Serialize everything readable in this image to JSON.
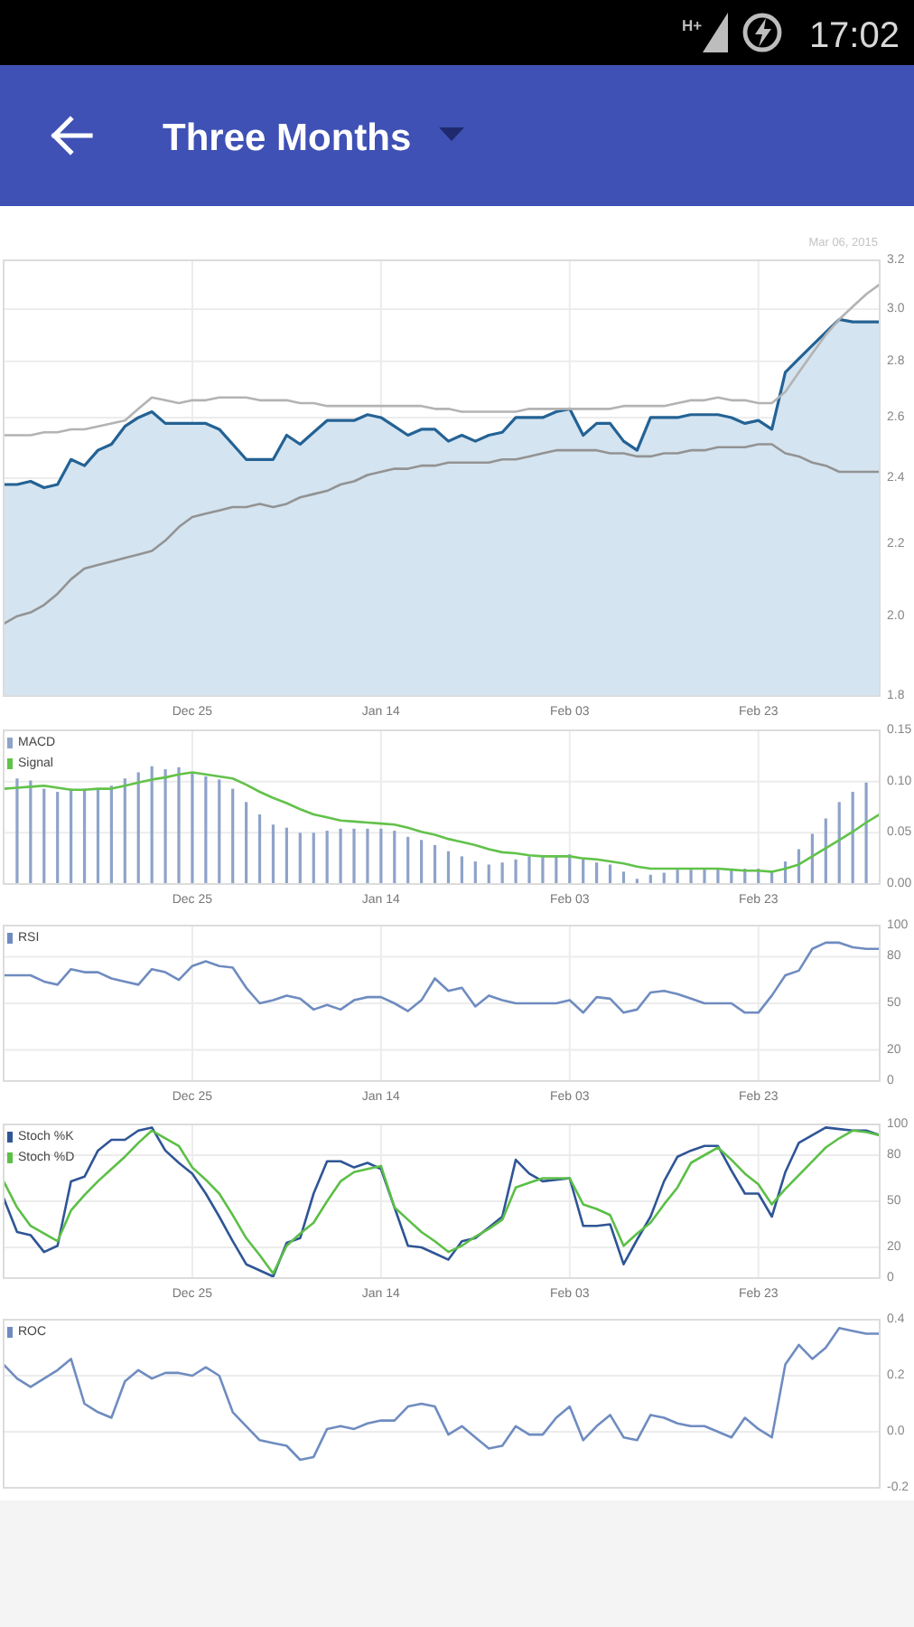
{
  "chart_data": [
    {
      "type": "line",
      "title": "Three Months",
      "annotations": [
        "H+",
        "17:02",
        "Mar 06, 2015"
      ],
      "categories": [
        null,
        null,
        null,
        null,
        null,
        null,
        null,
        null,
        null,
        null,
        null,
        null,
        null,
        null,
        "Dec 25",
        null,
        null,
        null,
        null,
        null,
        null,
        null,
        null,
        null,
        null,
        null,
        null,
        null,
        "Jan 14",
        null,
        null,
        null,
        null,
        null,
        null,
        null,
        null,
        null,
        null,
        null,
        null,
        null,
        "Feb 03",
        null,
        null,
        null,
        null,
        null,
        null,
        null,
        null,
        null,
        null,
        null,
        null,
        null,
        "Feb 23",
        null,
        null,
        null,
        null,
        null,
        null,
        null,
        null,
        null
      ],
      "ylim": [
        1.8,
        3.2
      ],
      "log": true,
      "yticks": [
        1.8,
        {
          "value": 2,
          "label": "2.0"
        },
        2.2,
        2.4,
        2.6,
        2.8,
        {
          "value": 3,
          "label": "3.0"
        },
        3.2
      ],
      "grid": true,
      "series": [
        {
          "type": "area",
          "color": "#d4e4f1",
          "values": [
            2.38,
            2.38,
            2.39,
            2.37,
            2.38,
            2.46,
            2.44,
            2.49,
            2.51,
            2.57,
            2.6,
            2.62,
            2.58,
            2.58,
            2.58,
            2.58,
            2.56,
            2.51,
            2.46,
            2.46,
            2.46,
            2.54,
            2.51,
            2.55,
            2.59,
            2.59,
            2.59,
            2.61,
            2.6,
            2.57,
            2.54,
            2.56,
            2.56,
            2.52,
            2.54,
            2.52,
            2.54,
            2.55,
            2.6,
            2.6,
            2.6,
            2.62,
            2.63,
            2.54,
            2.58,
            2.58,
            2.52,
            2.49,
            2.6,
            2.6,
            2.6,
            2.61,
            2.61,
            2.61,
            2.6,
            2.58,
            2.59,
            2.56,
            2.76,
            2.81,
            2.86,
            2.91,
            2.96,
            2.95,
            2.95,
            2.95
          ]
        },
        {
          "color": "#b3b3b3",
          "values": [
            2.54,
            2.54,
            2.54,
            2.55,
            2.55,
            2.56,
            2.56,
            2.57,
            2.58,
            2.59,
            2.63,
            2.67,
            2.66,
            2.65,
            2.66,
            2.66,
            2.67,
            2.67,
            2.67,
            2.66,
            2.66,
            2.66,
            2.65,
            2.65,
            2.64,
            2.64,
            2.64,
            2.64,
            2.64,
            2.64,
            2.64,
            2.64,
            2.63,
            2.63,
            2.62,
            2.62,
            2.62,
            2.62,
            2.62,
            2.63,
            2.63,
            2.63,
            2.63,
            2.63,
            2.63,
            2.63,
            2.64,
            2.64,
            2.64,
            2.64,
            2.65,
            2.66,
            2.66,
            2.67,
            2.66,
            2.66,
            2.65,
            2.65,
            2.69,
            2.76,
            2.83,
            2.9,
            2.96,
            3.01,
            3.06,
            3.1
          ]
        },
        {
          "color": "#939393",
          "values": [
            1.98,
            2.0,
            2.01,
            2.03,
            2.06,
            2.1,
            2.13,
            2.14,
            2.15,
            2.16,
            2.17,
            2.18,
            2.21,
            2.25,
            2.28,
            2.29,
            2.3,
            2.31,
            2.31,
            2.32,
            2.31,
            2.32,
            2.34,
            2.35,
            2.36,
            2.38,
            2.39,
            2.41,
            2.42,
            2.43,
            2.43,
            2.44,
            2.44,
            2.45,
            2.45,
            2.45,
            2.45,
            2.46,
            2.46,
            2.47,
            2.48,
            2.49,
            2.49,
            2.49,
            2.49,
            2.48,
            2.48,
            2.47,
            2.47,
            2.48,
            2.48,
            2.49,
            2.49,
            2.5,
            2.5,
            2.5,
            2.51,
            2.51,
            2.48,
            2.47,
            2.45,
            2.44,
            2.42,
            2.42,
            2.42,
            2.42
          ]
        }
      ]
    },
    {
      "type": "bar",
      "legend": "top left",
      "categories": [
        null,
        null,
        null,
        null,
        null,
        null,
        null,
        null,
        null,
        null,
        null,
        null,
        null,
        null,
        "Dec 25",
        null,
        null,
        null,
        null,
        null,
        null,
        null,
        null,
        null,
        null,
        null,
        null,
        null,
        "Jan 14",
        null,
        null,
        null,
        null,
        null,
        null,
        null,
        null,
        null,
        null,
        null,
        null,
        null,
        "Feb 03",
        null,
        null,
        null,
        null,
        null,
        null,
        null,
        null,
        null,
        null,
        null,
        null,
        null,
        "Feb 23",
        null,
        null,
        null,
        null,
        null,
        null,
        null,
        null,
        null
      ],
      "ylim": [
        0,
        0.15
      ],
      "yticks": [
        {
          "value": 0,
          "label": "0.00"
        },
        0.05,
        {
          "value": 0.1,
          "label": "0.10"
        },
        0.15
      ],
      "grid": true,
      "series": [
        {
          "name": "MACD",
          "color": "#8ea3c9",
          "values": [
            null,
            0.103,
            0.101,
            0.093,
            0.09,
            0.093,
            0.093,
            0.093,
            0.096,
            0.103,
            0.109,
            0.115,
            0.112,
            0.114,
            0.109,
            0.105,
            0.102,
            0.093,
            0.08,
            0.068,
            0.058,
            0.055,
            0.05,
            0.05,
            0.052,
            0.054,
            0.054,
            0.054,
            0.054,
            0.052,
            0.046,
            0.043,
            0.038,
            0.032,
            0.027,
            0.022,
            0.019,
            0.021,
            0.024,
            0.027,
            0.027,
            0.027,
            0.029,
            0.024,
            0.021,
            0.019,
            0.012,
            0.005,
            0.009,
            0.011,
            0.014,
            0.014,
            0.015,
            0.015,
            0.015,
            0.015,
            0.015,
            0.012,
            0.022,
            0.034,
            0.049,
            0.064,
            0.08,
            0.09,
            0.099,
            null
          ]
        },
        {
          "name": "Signal",
          "type": "line",
          "color": "#62c24a",
          "values": [
            0.093,
            0.094,
            0.095,
            0.096,
            0.094,
            0.092,
            0.092,
            0.093,
            0.093,
            0.096,
            0.099,
            0.102,
            0.104,
            0.107,
            0.109,
            0.107,
            0.105,
            0.103,
            0.097,
            0.09,
            0.084,
            0.079,
            0.073,
            0.068,
            0.065,
            0.062,
            0.061,
            0.06,
            0.059,
            0.058,
            0.055,
            0.051,
            0.048,
            0.044,
            0.041,
            0.038,
            0.034,
            0.031,
            0.03,
            0.028,
            0.027,
            0.027,
            0.027,
            0.025,
            0.024,
            0.022,
            0.02,
            0.017,
            0.015,
            0.015,
            0.015,
            0.015,
            0.015,
            0.015,
            0.014,
            0.013,
            0.013,
            0.012,
            0.015,
            0.019,
            0.027,
            0.035,
            0.043,
            0.051,
            0.06,
            0.068
          ]
        }
      ]
    },
    {
      "type": "line",
      "legend": "top left",
      "categories": [
        null,
        null,
        null,
        null,
        null,
        null,
        null,
        null,
        null,
        null,
        null,
        null,
        null,
        null,
        "Dec 25",
        null,
        null,
        null,
        null,
        null,
        null,
        null,
        null,
        null,
        null,
        null,
        null,
        null,
        "Jan 14",
        null,
        null,
        null,
        null,
        null,
        null,
        null,
        null,
        null,
        null,
        null,
        null,
        null,
        "Feb 03",
        null,
        null,
        null,
        null,
        null,
        null,
        null,
        null,
        null,
        null,
        null,
        null,
        null,
        "Feb 23",
        null,
        null,
        null,
        null,
        null,
        null,
        null,
        null,
        null
      ],
      "ylim": [
        0,
        100
      ],
      "yticks": [
        0,
        20,
        50,
        80,
        100
      ],
      "grid": true,
      "series": [
        {
          "name": "RSI",
          "color": "#6f8cc0",
          "values": [
            68,
            68,
            68,
            64,
            62,
            72,
            70,
            70,
            66,
            64,
            62,
            72,
            70,
            65,
            74,
            77,
            74,
            73,
            60,
            50,
            52,
            55,
            53,
            46,
            49,
            46,
            52,
            54,
            54,
            50,
            45,
            52,
            66,
            58,
            60,
            48,
            55,
            52,
            50,
            50,
            50,
            50,
            52,
            44,
            54,
            53,
            44,
            46,
            57,
            58,
            56,
            53,
            50,
            50,
            50,
            44,
            44,
            55,
            68,
            71,
            85,
            89,
            89,
            86,
            85,
            85
          ]
        }
      ]
    },
    {
      "type": "line",
      "legend": "top left",
      "categories": [
        null,
        null,
        null,
        null,
        null,
        null,
        null,
        null,
        null,
        null,
        null,
        null,
        null,
        null,
        "Dec 25",
        null,
        null,
        null,
        null,
        null,
        null,
        null,
        null,
        null,
        null,
        null,
        null,
        null,
        "Jan 14",
        null,
        null,
        null,
        null,
        null,
        null,
        null,
        null,
        null,
        null,
        null,
        null,
        null,
        "Feb 03",
        null,
        null,
        null,
        null,
        null,
        null,
        null,
        null,
        null,
        null,
        null,
        null,
        null,
        "Feb 23",
        null,
        null,
        null,
        null,
        null,
        null,
        null,
        null,
        null
      ],
      "ylim": [
        0,
        100
      ],
      "yticks": [
        0,
        20,
        50,
        80,
        100
      ],
      "grid": true,
      "series": [
        {
          "name": "Stoch %K",
          "color": "#2f5596",
          "values": [
            52,
            30,
            28,
            17,
            21,
            63,
            66,
            83,
            90,
            90,
            96,
            98,
            83,
            75,
            68,
            55,
            40,
            24,
            9,
            5,
            1,
            23,
            26,
            55,
            76,
            76,
            72,
            75,
            71,
            46,
            21,
            20,
            16,
            12,
            24,
            26,
            33,
            40,
            77,
            68,
            63,
            64,
            65,
            34,
            34,
            35,
            9,
            25,
            40,
            63,
            79,
            83,
            86,
            86,
            70,
            55,
            55,
            40,
            69,
            88,
            93,
            98,
            97,
            96,
            96,
            93
          ]
        },
        {
          "name": "Stoch %D",
          "color": "#5cbf47",
          "values": [
            63,
            46,
            34,
            29,
            24,
            44,
            54,
            63,
            71,
            79,
            88,
            96,
            91,
            86,
            72,
            64,
            55,
            41,
            26,
            15,
            3,
            21,
            29,
            36,
            50,
            63,
            69,
            71,
            73,
            46,
            38,
            30,
            24,
            17,
            21,
            27,
            32,
            38,
            59,
            62,
            65,
            65,
            65,
            48,
            45,
            41,
            21,
            29,
            36,
            48,
            59,
            75,
            80,
            85,
            77,
            68,
            61,
            48,
            58,
            67,
            76,
            85,
            91,
            96,
            95,
            93
          ]
        }
      ]
    },
    {
      "type": "line",
      "legend": "top left",
      "categories": [
        null,
        null,
        null,
        null,
        null,
        null,
        null,
        null,
        null,
        null,
        null,
        null,
        null,
        null,
        null,
        null,
        null,
        null,
        null,
        null,
        null,
        null,
        null,
        null,
        null,
        null,
        null,
        null,
        null,
        null,
        null,
        null,
        null,
        null,
        null,
        null,
        null,
        null,
        null,
        null,
        null,
        null,
        null,
        null,
        null,
        null,
        null,
        null,
        null,
        null,
        null,
        null,
        null,
        null,
        null,
        null,
        null,
        null,
        null,
        null,
        null,
        null,
        null,
        null,
        null,
        null
      ],
      "ylim": [
        -0.2,
        0.4
      ],
      "yticks": [
        -0.2,
        {
          "value": 0,
          "label": "0.0"
        },
        0.2,
        0.4
      ],
      "grid": true,
      "series": [
        {
          "name": "ROC",
          "color": "#6f8cc0",
          "values": [
            0.24,
            0.19,
            0.16,
            0.19,
            0.22,
            0.26,
            0.1,
            0.07,
            0.05,
            0.18,
            0.22,
            0.19,
            0.21,
            0.21,
            0.2,
            0.23,
            0.2,
            0.07,
            0.02,
            -0.03,
            -0.04,
            -0.05,
            -0.1,
            -0.09,
            0.01,
            0.02,
            0.01,
            0.03,
            0.04,
            0.04,
            0.09,
            0.1,
            0.09,
            -0.01,
            0.02,
            -0.02,
            -0.06,
            -0.05,
            0.02,
            -0.01,
            -0.01,
            0.05,
            0.09,
            -0.03,
            0.02,
            0.06,
            -0.02,
            -0.03,
            0.06,
            0.05,
            0.03,
            0.02,
            0.02,
            0.0,
            -0.02,
            0.05,
            0.01,
            -0.02,
            0.24,
            0.31,
            0.26,
            0.3,
            0.37,
            0.36,
            0.35,
            0.35
          ]
        }
      ]
    }
  ]
}
